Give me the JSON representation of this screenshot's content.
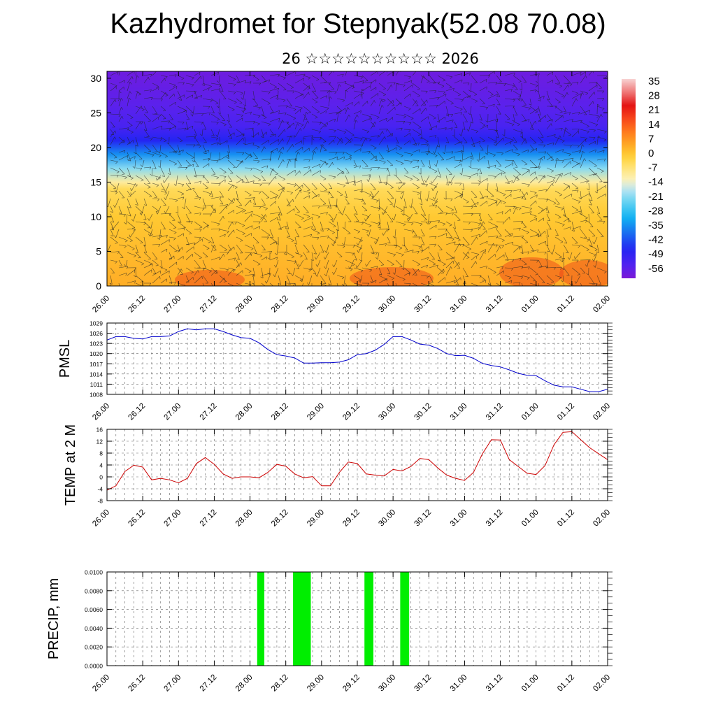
{
  "title": "Kazhydromet for Stepnyak(52.08 70.08)",
  "subtitle": "26 ☆☆☆☆☆☆☆☆☆☆ 2026",
  "time_ticks": [
    "26.00",
    "26.12",
    "27.00",
    "27.12",
    "28.00",
    "28.12",
    "29.00",
    "29.12",
    "30.00",
    "30.12",
    "31.00",
    "31.12",
    "01.00",
    "01.12",
    "02.00"
  ],
  "chart_data": [
    {
      "type": "heatmap",
      "ylim": [
        0,
        31
      ],
      "y_ticks": [
        "0",
        "5",
        "10",
        "15",
        "20",
        "25",
        "30"
      ],
      "colorbar": {
        "labels": [
          "35",
          "28",
          "21",
          "14",
          "7",
          "0",
          "-7",
          "-14",
          "-21",
          "-28",
          "-35",
          "-42",
          "-49",
          "-56"
        ],
        "range": [
          -60,
          38
        ]
      },
      "vertical_profile": [
        {
          "level": 0,
          "value": 5
        },
        {
          "level": 5,
          "value": 3
        },
        {
          "level": 10,
          "value": 1
        },
        {
          "level": 14,
          "value": -3
        },
        {
          "level": 15,
          "value": -9
        },
        {
          "level": 17,
          "value": -20
        },
        {
          "level": 19,
          "value": -34
        },
        {
          "level": 21,
          "value": -46
        },
        {
          "level": 23,
          "value": -52
        },
        {
          "level": 26,
          "value": -55
        },
        {
          "level": 31,
          "value": -58
        }
      ],
      "overlay": "wind barbs"
    },
    {
      "type": "line",
      "ylabel": "PMSL",
      "ylim": [
        1008,
        1029
      ],
      "y_ticks": [
        "1008",
        "1011",
        "1014",
        "1017",
        "1020",
        "1023",
        "1026",
        "1029"
      ],
      "color": "#0000cc",
      "x": [
        0,
        1,
        2,
        3,
        4,
        5,
        6,
        7,
        8,
        9,
        10,
        11,
        12,
        13,
        14,
        15,
        16,
        17,
        18,
        19,
        20,
        21,
        22,
        23,
        24,
        25,
        26,
        27,
        28,
        29,
        30,
        31,
        32,
        33,
        34,
        35,
        36,
        37,
        38,
        39,
        40,
        41,
        42,
        43,
        44,
        45,
        46,
        47,
        48,
        49,
        50,
        51,
        52,
        53,
        54,
        55,
        56
      ],
      "values": [
        1024,
        1025,
        1025,
        1024.5,
        1024.3,
        1025,
        1025,
        1025.2,
        1026.5,
        1027.3,
        1027,
        1027.3,
        1027.3,
        1026.5,
        1025.5,
        1024.7,
        1024.5,
        1023.2,
        1021.2,
        1019.7,
        1019.3,
        1018.7,
        1017.2,
        1017.2,
        1017.3,
        1017.3,
        1017.5,
        1018.2,
        1019.7,
        1020,
        1021,
        1022.7,
        1025,
        1025,
        1024,
        1022.8,
        1022.5,
        1021.5,
        1020,
        1019.4,
        1019.5,
        1018.6,
        1017.1,
        1016.5,
        1016.1,
        1015.2,
        1014.2,
        1013.6,
        1013.5,
        1012,
        1010.7,
        1010.2,
        1010.2,
        1009.5,
        1008.8,
        1008.8,
        1009.5
      ]
    },
    {
      "type": "line",
      "ylabel": "TEMP at 2 M",
      "ylim": [
        -8,
        16
      ],
      "y_ticks": [
        "-8",
        "-4",
        "0",
        "4",
        "8",
        "12",
        "16"
      ],
      "color": "#cc0000",
      "x": [
        0,
        1,
        2,
        3,
        4,
        5,
        6,
        7,
        8,
        9,
        10,
        11,
        12,
        13,
        14,
        15,
        16,
        17,
        18,
        19,
        20,
        21,
        22,
        23,
        24,
        25,
        26,
        27,
        28,
        29,
        30,
        31,
        32,
        33,
        34,
        35,
        36,
        37,
        38,
        39,
        40,
        41,
        42,
        43,
        44,
        45,
        46,
        47,
        48,
        49,
        50,
        51,
        52,
        53,
        54,
        55,
        56
      ],
      "values": [
        -4.5,
        -3,
        1.8,
        3.9,
        3.3,
        -1,
        -0.5,
        -1,
        -2,
        -0.5,
        4.5,
        6.5,
        4.2,
        1,
        -0.5,
        0,
        0,
        -0.3,
        1.5,
        4.2,
        3.6,
        1,
        -0.3,
        0.1,
        -3,
        -3,
        1.5,
        5,
        4.5,
        1,
        0.6,
        0.3,
        2.5,
        2,
        3.5,
        6.2,
        5.8,
        3,
        0.6,
        -0.5,
        -1.2,
        1.5,
        7.8,
        12.5,
        12.4,
        5.8,
        3.5,
        1.2,
        0.8,
        3.8,
        10.8,
        15,
        15.2,
        12.5,
        9.8,
        7.8,
        5.8
      ]
    },
    {
      "type": "bar",
      "ylabel": "PRECIP, mm",
      "ylim": [
        0,
        0.01
      ],
      "y_ticks": [
        "0.0000",
        "0.0020",
        "0.0040",
        "0.0060",
        "0.0080",
        "0.0100"
      ],
      "color": "#00ee00",
      "bars": [
        {
          "x0": 16.8,
          "x1": 17.6,
          "value": 0.01
        },
        {
          "x0": 20.8,
          "x1": 22.8,
          "value": 0.01
        },
        {
          "x0": 28.8,
          "x1": 29.8,
          "value": 0.01
        },
        {
          "x0": 32.8,
          "x1": 33.8,
          "value": 0.01
        }
      ]
    }
  ]
}
